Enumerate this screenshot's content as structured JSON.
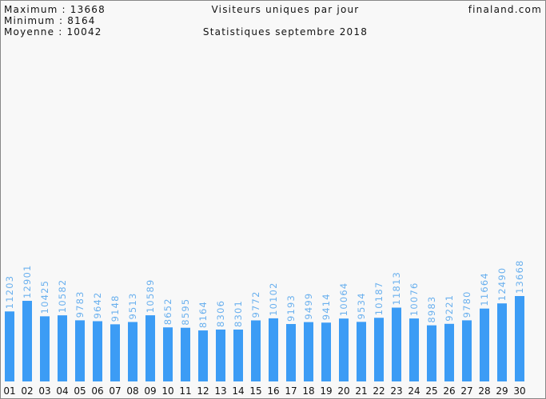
{
  "header": {
    "stats": [
      "Maximum : 13668",
      "Minimum : 8164",
      "Moyenne : 10042"
    ],
    "title": "Visiteurs uniques par jour",
    "subtitle": "Statistiques septembre 2018",
    "site": "finaland.com"
  },
  "chart_data": {
    "type": "bar",
    "color": "#3c9cf5",
    "label_color": "#6ab0ee",
    "categories": [
      "01",
      "02",
      "03",
      "04",
      "05",
      "06",
      "07",
      "08",
      "09",
      "10",
      "11",
      "12",
      "13",
      "14",
      "15",
      "16",
      "17",
      "18",
      "19",
      "20",
      "21",
      "22",
      "23",
      "24",
      "25",
      "26",
      "27",
      "28",
      "29",
      "30"
    ],
    "values": [
      11203,
      12901,
      10425,
      10582,
      9783,
      9642,
      9148,
      9513,
      10589,
      8652,
      8595,
      8164,
      8306,
      8301,
      9772,
      10102,
      9193,
      9499,
      9414,
      10064,
      9534,
      10187,
      11813,
      10076,
      8983,
      9221,
      9780,
      11664,
      12490,
      13668
    ]
  }
}
